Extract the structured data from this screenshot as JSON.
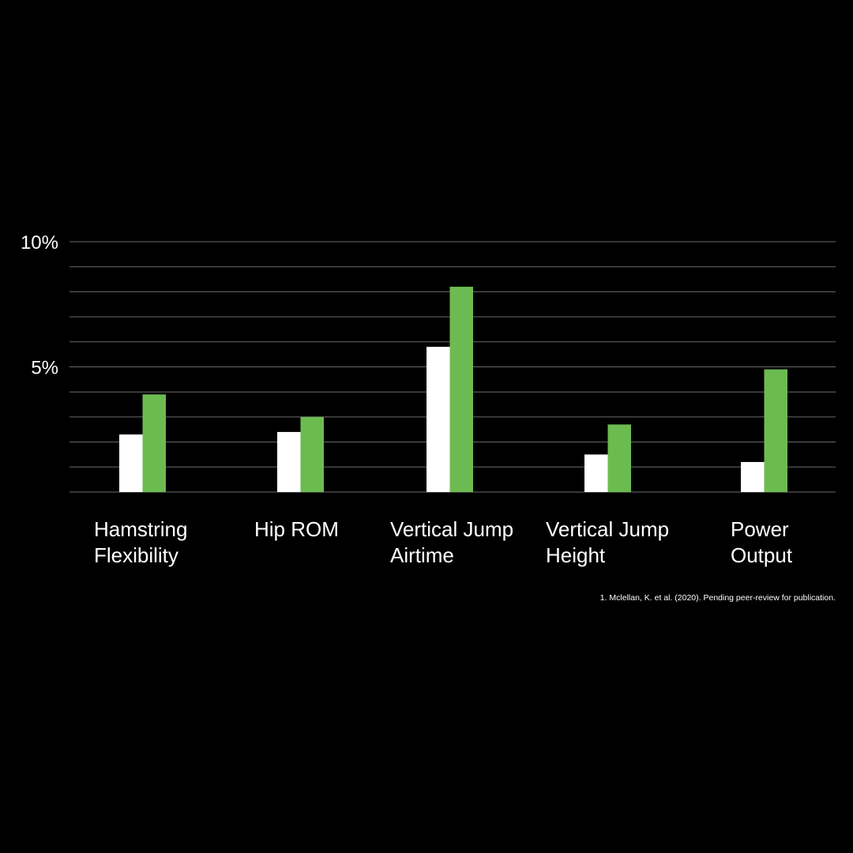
{
  "chart_data": {
    "type": "bar",
    "categories": [
      [
        "Hamstring",
        "Flexibility"
      ],
      [
        "Hip ROM"
      ],
      [
        "Vertical Jump",
        "Airtime"
      ],
      [
        "Vertical Jump",
        "Height"
      ],
      [
        "Power",
        "Output"
      ]
    ],
    "series": [
      {
        "color": "#ffffff",
        "values": [
          2.3,
          2.4,
          5.8,
          1.5,
          1.2
        ]
      },
      {
        "color": "#6cbb50",
        "values": [
          3.9,
          3.0,
          8.2,
          2.7,
          4.9
        ]
      }
    ],
    "ylim": [
      0,
      10
    ],
    "yticks": [
      {
        "value": 10,
        "label": "10%"
      },
      {
        "value": 5,
        "label": "5%"
      }
    ],
    "grid_step": 1,
    "grid": true,
    "title": "",
    "xlabel": "",
    "ylabel": ""
  },
  "footnote": "1. Mclellan, K. et al. (2020). Pending peer-review for publication."
}
